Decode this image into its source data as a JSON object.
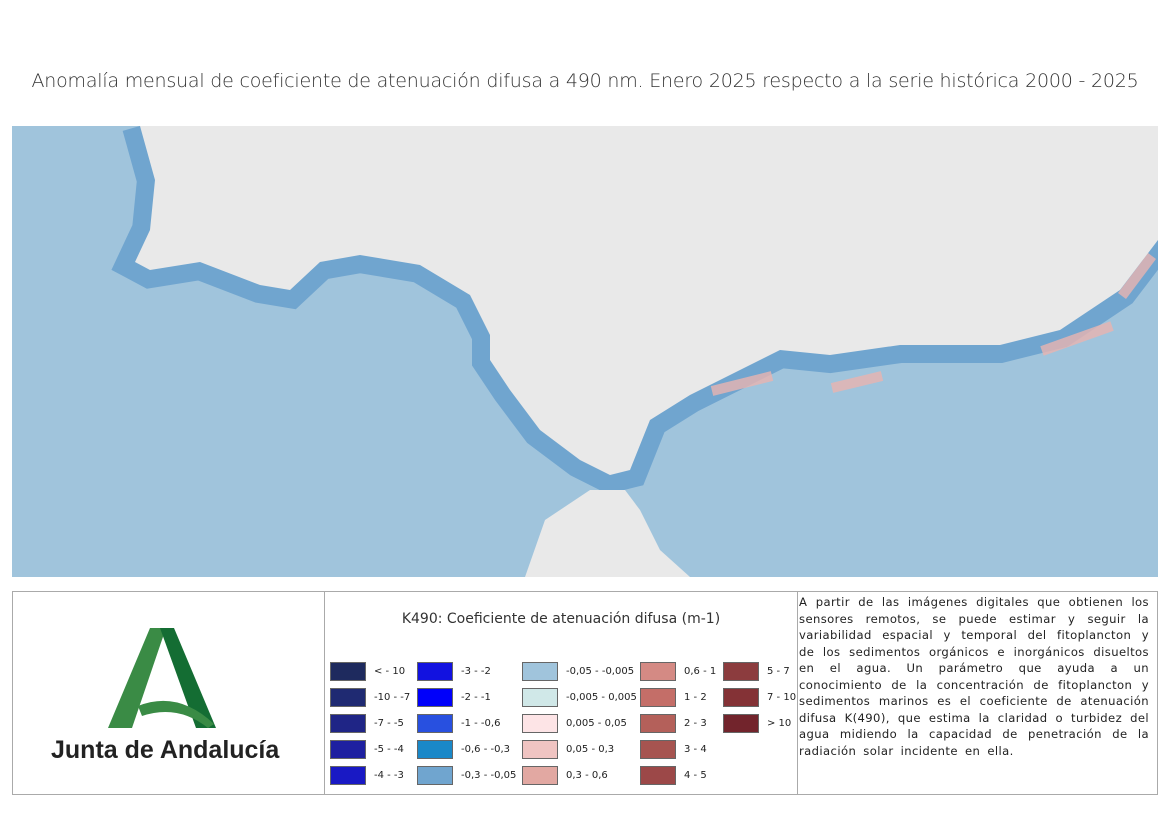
{
  "title": "Anomalía mensual de coeficiente de atenuación difusa a 490 nm. Enero 2025 respecto a la serie histórica 2000 - 2025",
  "colors": {
    "sea": "#a0c4dc",
    "coast": "#70a5cf",
    "land": "#e9e9e9",
    "logo_green": "#3a8b45",
    "logo_dark": "#146d33"
  },
  "logo": {
    "text": "Junta de Andalucía"
  },
  "legend": {
    "title": "K490: Coeficiente de atenuación difusa (m-1)",
    "columns": [
      [
        {
          "label": "< - 10",
          "color": "#1e2a5e"
        },
        {
          "label": "-10 - -7",
          "color": "#1f2a72"
        },
        {
          "label": "-7 - -5",
          "color": "#1f2586"
        },
        {
          "label": "-5 - -4",
          "color": "#1e20a0"
        },
        {
          "label": "-4 - -3",
          "color": "#1919c4"
        }
      ],
      [
        {
          "label": "-3 - -2",
          "color": "#1212e0"
        },
        {
          "label": "-2 - -1",
          "color": "#0000fa"
        },
        {
          "label": "-1 - -0,6",
          "color": "#2850e0"
        },
        {
          "label": "-0,6 - -0,3",
          "color": "#1a88c8"
        },
        {
          "label": "-0,3 - -0,05",
          "color": "#70a5cf"
        }
      ],
      [
        {
          "label": "-0,05 - -0,005",
          "color": "#a0c4dc"
        },
        {
          "label": "-0,005 - 0,005",
          "color": "#d0e8e8"
        },
        {
          "label": "0,005 - 0,05",
          "color": "#fde4e6"
        },
        {
          "label": "0,05 - 0,3",
          "color": "#f0c4c2"
        },
        {
          "label": "0,3 - 0,6",
          "color": "#e2a8a2"
        }
      ],
      [
        {
          "label": "0,6 - 1",
          "color": "#d48a84"
        },
        {
          "label": "1 - 2",
          "color": "#c46e68"
        },
        {
          "label": "2 - 3",
          "color": "#b4605a"
        },
        {
          "label": "3 - 4",
          "color": "#a65450"
        },
        {
          "label": "4 - 5",
          "color": "#9c4848"
        }
      ],
      [
        {
          "label": "5 - 7",
          "color": "#8c3c3e"
        },
        {
          "label": "7 - 10",
          "color": "#843236"
        },
        {
          "label": "> 10",
          "color": "#72242c"
        }
      ]
    ]
  },
  "description": "A partir de las imágenes digitales que obtienen los sensores remotos, se puede estimar y seguir la variabilidad espacial y temporal del fitoplancton y de los sedimentos orgánicos e inorgánicos disueltos en el agua. Un parámetro que ayuda a un conocimiento de la concentración de fitoplancton y sedimentos marinos es el coeficiente de atenuación difusa K(490), que estima la claridad o turbidez del agua midiendo la capacidad de penetración de la radiación solar incidente en ella."
}
